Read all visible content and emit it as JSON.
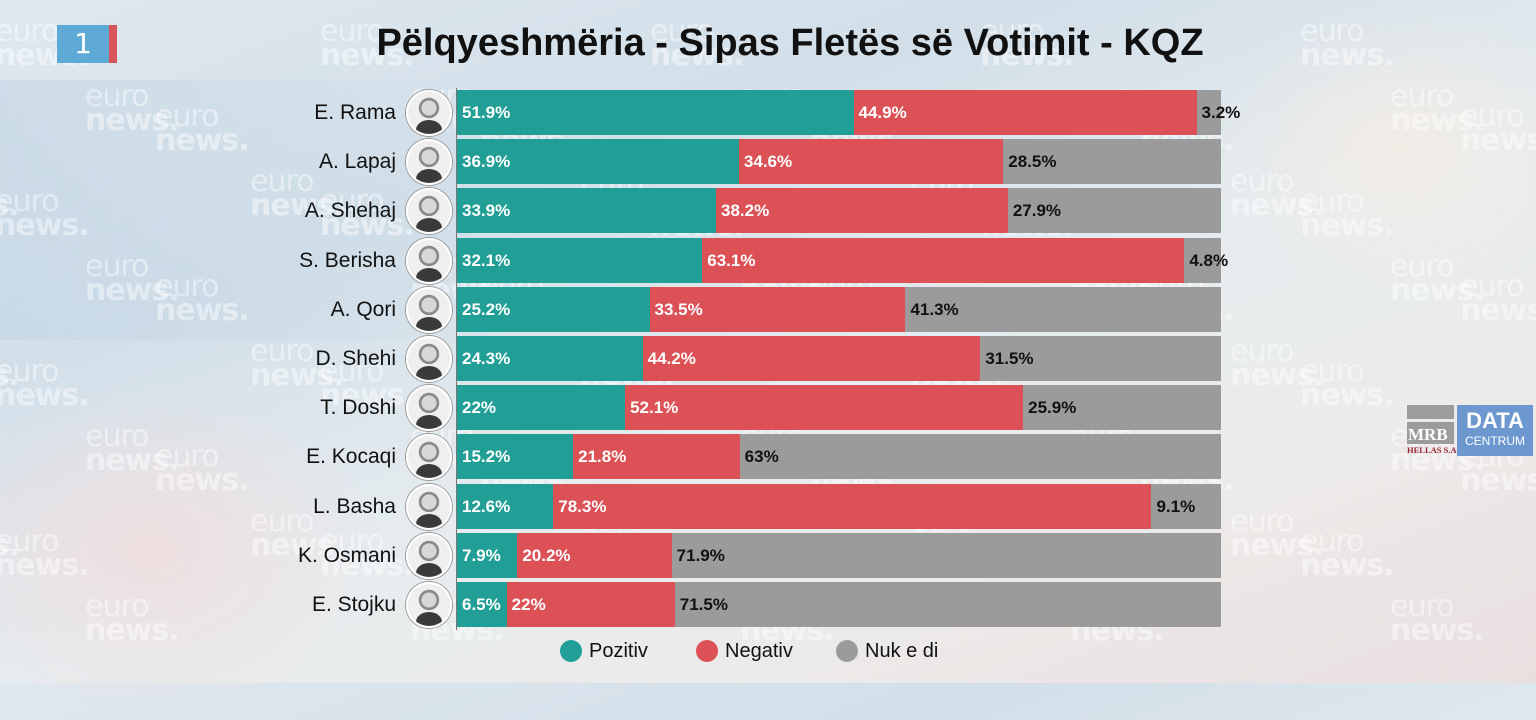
{
  "slide_number": "1",
  "watermark": {
    "line1": "euro",
    "line2": "news."
  },
  "logo": {
    "mrb": "MRB",
    "hellas": "HELLAS S.A.",
    "data": "DATA",
    "centrum": "CENTRUM"
  },
  "colors": {
    "pozitiv": "#219e95",
    "negativ": "#db5155",
    "nuk_e_di": "#9b9b9b"
  },
  "chart_data": {
    "type": "bar",
    "orientation": "horizontal",
    "stacked": true,
    "normalized": true,
    "title": "Pëlqyeshmëria - Sipas Fletës së Votimit - KQZ",
    "xlabel": "",
    "ylabel": "",
    "xlim": [
      0,
      100
    ],
    "grid": false,
    "legend_position": "bottom",
    "categories": [
      "E. Rama",
      "A. Lapaj",
      "A. Shehaj",
      "S. Berisha",
      "A. Qori",
      "D. Shehi",
      "T. Doshi",
      "E. Kocaqi",
      "L. Basha",
      "K. Osmani",
      "E. Stojku"
    ],
    "series": [
      {
        "name": "Pozitiv",
        "color": "#219e95",
        "values": [
          51.9,
          36.9,
          33.9,
          32.1,
          25.2,
          24.3,
          22,
          15.2,
          12.6,
          7.9,
          6.5
        ],
        "labels": [
          "51.9%",
          "36.9%",
          "33.9%",
          "32.1%",
          "25.2%",
          "24.3%",
          "22%",
          "15.2%",
          "12.6%",
          "7.9%",
          "6.5%"
        ]
      },
      {
        "name": "Negativ",
        "color": "#db5155",
        "values": [
          44.9,
          34.6,
          38.2,
          63.1,
          33.5,
          44.2,
          52.1,
          21.8,
          78.3,
          20.2,
          22
        ],
        "labels": [
          "44.9%",
          "34.6%",
          "38.2%",
          "63.1%",
          "33.5%",
          "44.2%",
          "52.1%",
          "21.8%",
          "78.3%",
          "20.2%",
          "22%"
        ]
      },
      {
        "name": "Nuk e di",
        "color": "#9b9b9b",
        "values": [
          3.2,
          28.5,
          27.9,
          4.8,
          41.3,
          31.5,
          25.9,
          63,
          9.1,
          71.9,
          71.5
        ],
        "labels": [
          "3.2%",
          "28.5%",
          "27.9%",
          "4.8%",
          "41.3%",
          "31.5%",
          "25.9%",
          "63%",
          "9.1%",
          "71.9%",
          "71.5%"
        ]
      }
    ]
  }
}
